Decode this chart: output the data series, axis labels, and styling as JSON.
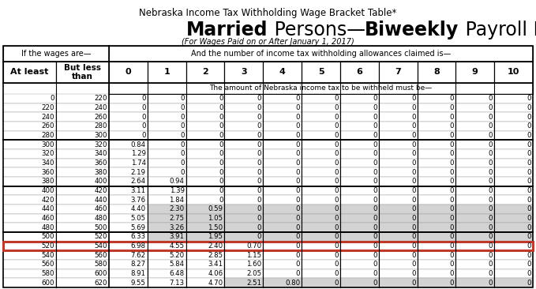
{
  "title_line1": "Nebraska Income Tax Withholding Wage Bracket Table*",
  "title_line3": "(For Wages Paid on or After January 1, 2017)",
  "header1_left": "If the wages are—",
  "header1_right": "And the number of income tax withholding allowances claimed is—",
  "header2_col1": "At least",
  "header2_col2": "But less\nthan",
  "header2_numbers": [
    "0",
    "1",
    "2",
    "3",
    "4",
    "5",
    "6",
    "7",
    "8",
    "9",
    "10"
  ],
  "header3": "The amount of Nebraska income tax to be withheld must be—",
  "rows": [
    [
      0,
      220,
      "0",
      "0",
      "0",
      "0",
      "0",
      "0",
      "0",
      "0",
      "0",
      "0",
      "0"
    ],
    [
      220,
      240,
      "0",
      "0",
      "0",
      "0",
      "0",
      "0",
      "0",
      "0",
      "0",
      "0",
      "0"
    ],
    [
      240,
      260,
      "0",
      "0",
      "0",
      "0",
      "0",
      "0",
      "0",
      "0",
      "0",
      "0",
      "0"
    ],
    [
      260,
      280,
      "0",
      "0",
      "0",
      "0",
      "0",
      "0",
      "0",
      "0",
      "0",
      "0",
      "0"
    ],
    [
      280,
      300,
      "0",
      "0",
      "0",
      "0",
      "0",
      "0",
      "0",
      "0",
      "0",
      "0",
      "0"
    ],
    [
      300,
      320,
      "0.84",
      "0",
      "0",
      "0",
      "0",
      "0",
      "0",
      "0",
      "0",
      "0",
      "0"
    ],
    [
      320,
      340,
      "1.29",
      "0",
      "0",
      "0",
      "0",
      "0",
      "0",
      "0",
      "0",
      "0",
      "0"
    ],
    [
      340,
      360,
      "1.74",
      "0",
      "0",
      "0",
      "0",
      "0",
      "0",
      "0",
      "0",
      "0",
      "0"
    ],
    [
      360,
      380,
      "2.19",
      "0",
      "0",
      "0",
      "0",
      "0",
      "0",
      "0",
      "0",
      "0",
      "0"
    ],
    [
      380,
      400,
      "2.64",
      "0.94",
      "0",
      "0",
      "0",
      "0",
      "0",
      "0",
      "0",
      "0",
      "0"
    ],
    [
      400,
      420,
      "3.11",
      "1.39",
      "0",
      "0",
      "0",
      "0",
      "0",
      "0",
      "0",
      "0",
      "0"
    ],
    [
      420,
      440,
      "3.76",
      "1.84",
      "0",
      "0",
      "0",
      "0",
      "0",
      "0",
      "0",
      "0",
      "0"
    ],
    [
      440,
      460,
      "4.40",
      "2.30",
      "0.59",
      "0",
      "0",
      "0",
      "0",
      "0",
      "0",
      "0",
      "0"
    ],
    [
      460,
      480,
      "5.05",
      "2.75",
      "1.05",
      "0",
      "0",
      "0",
      "0",
      "0",
      "0",
      "0",
      "0"
    ],
    [
      480,
      500,
      "5.69",
      "3.26",
      "1.50",
      "0",
      "0",
      "0",
      "0",
      "0",
      "0",
      "0",
      "0"
    ],
    [
      500,
      520,
      "6.33",
      "3.91",
      "1.95",
      "0",
      "0",
      "0",
      "0",
      "0",
      "0",
      "0",
      "0"
    ],
    [
      520,
      540,
      "6.98",
      "4.55",
      "2.40",
      "0.70",
      "0",
      "0",
      "0",
      "0",
      "0",
      "0",
      "0"
    ],
    [
      540,
      560,
      "7.62",
      "5.20",
      "2.85",
      "1.15",
      "0",
      "0",
      "0",
      "0",
      "0",
      "0",
      "0"
    ],
    [
      560,
      580,
      "8.27",
      "5.84",
      "3.41",
      "1.60",
      "0",
      "0",
      "0",
      "0",
      "0",
      "0",
      "0"
    ],
    [
      580,
      600,
      "8.91",
      "6.48",
      "4.06",
      "2.05",
      "0",
      "0",
      "0",
      "0",
      "0",
      "0",
      "0"
    ],
    [
      600,
      620,
      "9.55",
      "7.13",
      "4.70",
      "2.51",
      "0.80",
      "0",
      "0",
      "0",
      "0",
      "0",
      "0"
    ]
  ],
  "highlighted_row": 16,
  "highlight_row_color": "#c0392b",
  "shade_color": "#d3d3d3",
  "group_separators": [
    5,
    10,
    15,
    21
  ],
  "bg_color": "#ffffff",
  "text_color": "#000000"
}
